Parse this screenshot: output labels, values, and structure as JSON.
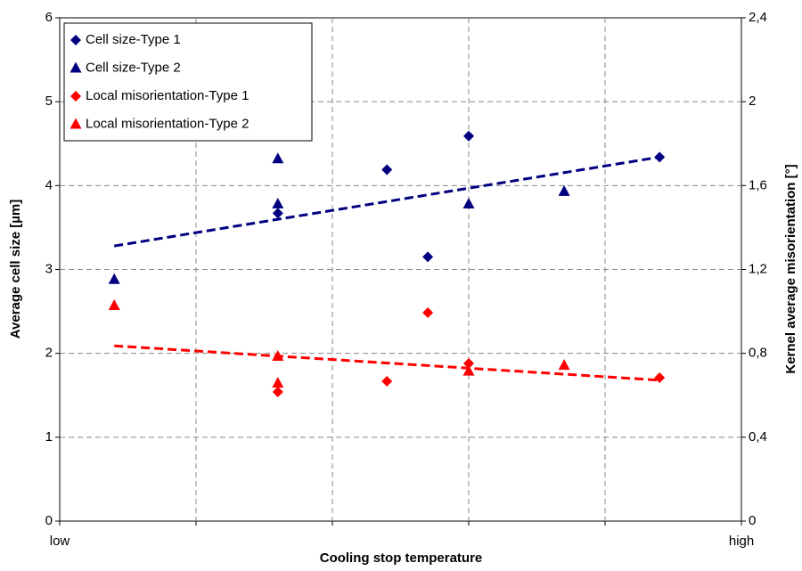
{
  "chart_data": {
    "type": "scatter",
    "xlabel": "Cooling stop temperature",
    "ylabel": "Average cell size [µm]",
    "y2label": "Kernel average misorientation [°]",
    "xlim": [
      0,
      5
    ],
    "xticks": [
      {
        "value": 0,
        "label": "low"
      },
      {
        "value": 5,
        "label": "high"
      }
    ],
    "xgrid": [
      1,
      2,
      3,
      4
    ],
    "ylim": [
      0,
      6
    ],
    "yticks": [
      0,
      1,
      2,
      3,
      4,
      5,
      6
    ],
    "y2lim": [
      0,
      2.4
    ],
    "y2ticks": [
      0,
      {
        "value": 0.4,
        "label": "0,4"
      },
      {
        "value": 0.8,
        "label": "0,8"
      },
      {
        "value": 1.2,
        "label": "1,2"
      },
      {
        "value": 1.6,
        "label": "1,6"
      },
      2,
      {
        "value": 2.4,
        "label": "2,4"
      }
    ],
    "grid": true,
    "legend": "upper left",
    "series": [
      {
        "name": "Cell size-Type 1",
        "color": "#000080",
        "marker": "diamond",
        "x": [
          1.6,
          2.4,
          2.7,
          3.0,
          4.4
        ],
        "values": [
          3.67,
          4.19,
          3.15,
          4.59,
          4.34
        ]
      },
      {
        "name": "Cell size-Type 2",
        "color": "#000080",
        "marker": "triangle",
        "x": [
          0.4,
          1.6,
          1.6,
          3.0,
          3.7
        ],
        "values": [
          2.88,
          4.32,
          3.78,
          3.78,
          3.93
        ]
      },
      {
        "name": "Local misorientation-Type 1",
        "color": "#ff0000",
        "marker": "diamond",
        "axis": "y2",
        "x": [
          1.6,
          2.4,
          2.7,
          3.0,
          4.4
        ],
        "values": [
          0.616,
          0.667,
          0.994,
          0.752,
          0.684
        ]
      },
      {
        "name": "Local misorientation-Type 2",
        "color": "#ff0000",
        "marker": "triangle",
        "axis": "y2",
        "x": [
          0.4,
          1.6,
          1.6,
          3.0,
          3.7
        ],
        "values": [
          1.028,
          0.786,
          0.658,
          0.715,
          0.743
        ]
      }
    ],
    "trendlines": [
      {
        "color": "#000080",
        "x": [
          0.4,
          4.4
        ],
        "values": [
          3.28,
          4.34
        ]
      },
      {
        "color": "#ff0000",
        "axis": "y2",
        "x": [
          0.4,
          4.4
        ],
        "values": [
          0.836,
          0.672
        ]
      }
    ]
  }
}
